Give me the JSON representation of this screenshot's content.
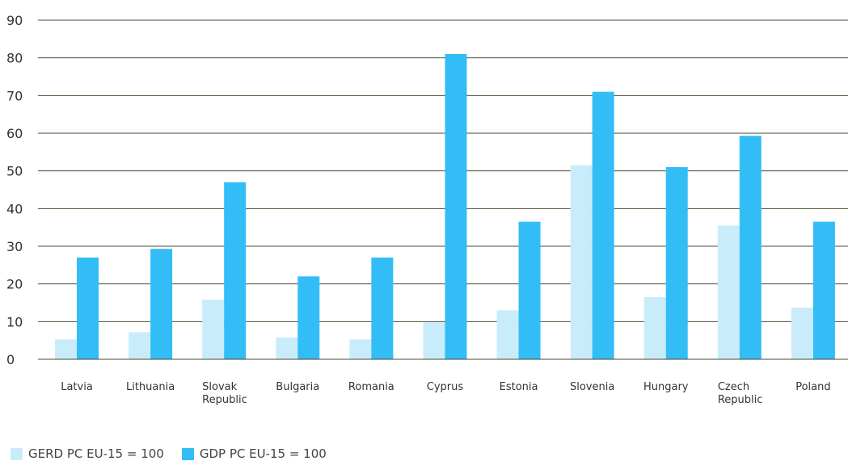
{
  "chart_data": {
    "type": "bar",
    "categories": [
      "Latvia",
      "Lithuania",
      "Slovak Republic",
      "Bulgaria",
      "Romania",
      "Cyprus",
      "Estonia",
      "Slovenia",
      "Hungary",
      "Czech Republic",
      "Poland"
    ],
    "series": [
      {
        "name": "GERD PC EU-15 = 100",
        "color": "#c9ecfb",
        "values": [
          5.3,
          7.2,
          15.8,
          5.8,
          5.3,
          9.8,
          13.0,
          51.5,
          16.5,
          35.5,
          13.7
        ]
      },
      {
        "name": "GDP PC EU-15 = 100",
        "color": "#33bdf7",
        "values": [
          27.0,
          29.3,
          47.0,
          22.0,
          27.0,
          81.0,
          36.5,
          71.0,
          51.0,
          59.3,
          36.5
        ]
      }
    ],
    "title": "",
    "xlabel": "",
    "ylabel": "",
    "ylim": [
      0,
      90
    ],
    "yticks": [
      0,
      10,
      20,
      30,
      40,
      50,
      60,
      70,
      80,
      90
    ],
    "grid": true,
    "legend_position": "bottom-left",
    "gridline_color": "#4b4b2e"
  }
}
